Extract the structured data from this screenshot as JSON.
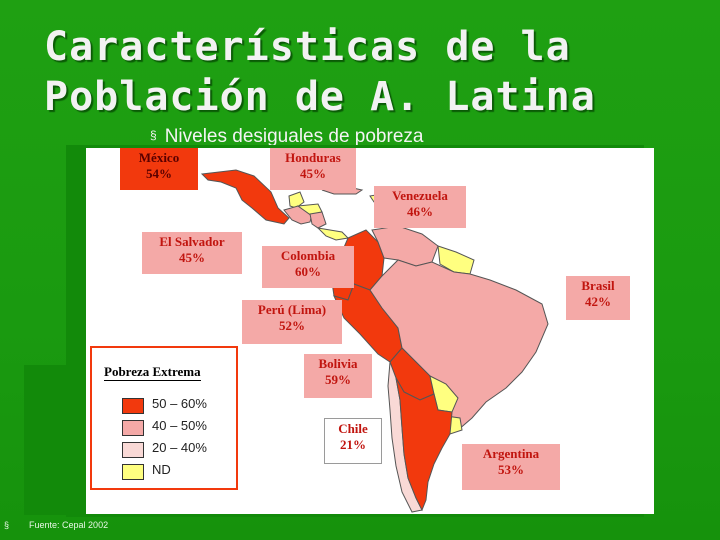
{
  "title": {
    "line1": "Características de la",
    "line2": "Población de A. Latina"
  },
  "subtitle": "Niveles desiguales de pobreza",
  "subtitle_bullet": "§",
  "countries": [
    {
      "name": "México",
      "value": "54%",
      "category": "50-60%"
    },
    {
      "name": "Honduras",
      "value": "45%",
      "category": "40-50%"
    },
    {
      "name": "Venezuela",
      "value": "46%",
      "category": "40-50%"
    },
    {
      "name": "El Salvador",
      "value": "45%",
      "category": "40-50%"
    },
    {
      "name": "Colombia",
      "value": "60%",
      "category": "50-60%"
    },
    {
      "name": "Brasil",
      "value": "42%",
      "category": "40-50%"
    },
    {
      "name": "Perú (Lima)",
      "value": "52%",
      "category": "50-60%"
    },
    {
      "name": "Bolivia",
      "value": "59%",
      "category": "50-60%"
    },
    {
      "name": "Chile",
      "value": "21%",
      "category": "20-40%"
    },
    {
      "name": "Argentina",
      "value": "53%",
      "category": "50-60%"
    }
  ],
  "legend": {
    "title": "Pobreza Extrema",
    "items": [
      {
        "label": "50 – 60%",
        "color": "#f2390d"
      },
      {
        "label": "40 – 50%",
        "color": "#f4a9a7"
      },
      {
        "label": "20 – 40%",
        "color": "#f9d9d6"
      },
      {
        "label": "ND",
        "color": "#ffff80"
      }
    ]
  },
  "colors": {
    "background": "#1a9a10",
    "high": "#f2390d",
    "mid": "#f4a9a7",
    "low": "#f9d9d6",
    "nd": "#ffff80"
  },
  "footer": {
    "bullet": "§",
    "source": "Fuente: Cepal 2002"
  }
}
